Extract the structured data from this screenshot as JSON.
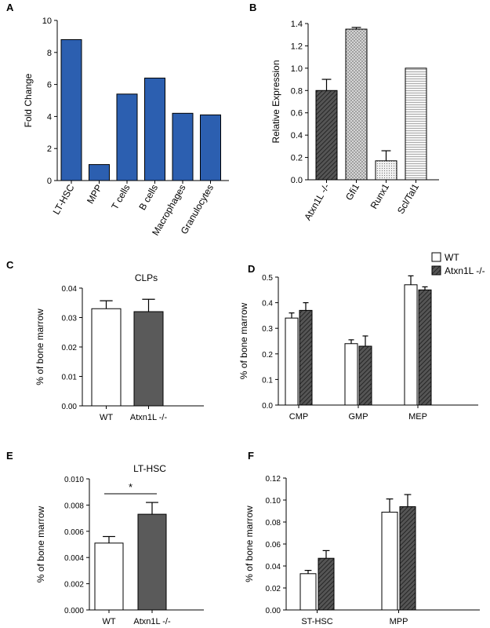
{
  "figure": {
    "legend": [
      {
        "label": "WT",
        "fill": "white"
      },
      {
        "label": "Atxn1L -/-",
        "fill": "dark-hatch"
      }
    ]
  },
  "chart_data": [
    {
      "panel": "A",
      "type": "bar",
      "ylabel": "Fold Change",
      "xlabel": "",
      "ylim": [
        0,
        10
      ],
      "yticks": [
        "0",
        "2",
        "4",
        "6",
        "8",
        "10"
      ],
      "categories": [
        "LT-HSC",
        "MPP",
        "T cells",
        "B cells",
        "Macrophages",
        "Granulocytes"
      ],
      "values": [
        8.8,
        1.0,
        5.4,
        6.4,
        4.2,
        4.1
      ],
      "bar_color": "#2c5fb0",
      "rotated_labels": true
    },
    {
      "panel": "B",
      "type": "bar",
      "ylabel": "Relative Expression",
      "xlabel": "",
      "ylim": [
        0,
        1.4
      ],
      "yticks": [
        "0.0",
        "0.2",
        "0.4",
        "0.6",
        "0.8",
        "1.0",
        "1.2",
        "1.4"
      ],
      "categories": [
        "Atxn1L -/-",
        "Gfi1",
        "Runx1",
        "Scl/Tal1"
      ],
      "values": [
        0.8,
        1.35,
        0.17,
        1.0
      ],
      "errors": [
        0.1,
        0.015,
        0.09,
        0
      ],
      "fills": [
        "dark-hatch",
        "light-cross",
        "dots",
        "hlines"
      ],
      "rotated_labels": true
    },
    {
      "panel": "C",
      "type": "bar",
      "title": "CLPs",
      "ylabel": "% of bone marrow",
      "xlabel": "",
      "ylim": [
        0,
        0.04
      ],
      "yticks": [
        "0.00",
        "0.01",
        "0.02",
        "0.03",
        "0.04"
      ],
      "categories": [
        "WT",
        "Atxn1L -/-"
      ],
      "values": [
        0.033,
        0.032
      ],
      "errors": [
        0.0027,
        0.0042
      ],
      "fills": [
        "white",
        "gray"
      ]
    },
    {
      "panel": "D",
      "type": "bar",
      "ylabel": "% of bone marrow",
      "xlabel": "",
      "ylim": [
        0,
        0.5
      ],
      "yticks": [
        "0.0",
        "0.1",
        "0.2",
        "0.3",
        "0.4",
        "0.5"
      ],
      "categories": [
        "CMP",
        "GMP",
        "MEP"
      ],
      "series": [
        {
          "name": "WT",
          "values": [
            0.34,
            0.24,
            0.47
          ],
          "errors": [
            0.02,
            0.015,
            0.035
          ],
          "fill": "white"
        },
        {
          "name": "Atxn1L -/-",
          "values": [
            0.37,
            0.23,
            0.45
          ],
          "errors": [
            0.03,
            0.04,
            0.012
          ],
          "fill": "dark-hatch"
        }
      ]
    },
    {
      "panel": "E",
      "type": "bar",
      "title": "LT-HSC",
      "ylabel": "% of bone marrow",
      "xlabel": "",
      "ylim": [
        0,
        0.01
      ],
      "yticks": [
        "0.000",
        "0.002",
        "0.004",
        "0.006",
        "0.008",
        "0.010"
      ],
      "categories": [
        "WT",
        "Atxn1L -/-"
      ],
      "values": [
        0.0051,
        0.0073
      ],
      "errors": [
        0.0005,
        0.0009
      ],
      "fills": [
        "white",
        "gray"
      ],
      "significance": "*"
    },
    {
      "panel": "F",
      "type": "bar",
      "ylabel": "% of bone marrow",
      "xlabel": "",
      "ylim": [
        0,
        0.12
      ],
      "yticks": [
        "0.00",
        "0.02",
        "0.04",
        "0.06",
        "0.08",
        "0.10",
        "0.12"
      ],
      "categories": [
        "ST-HSC",
        "MPP"
      ],
      "series": [
        {
          "name": "WT",
          "values": [
            0.033,
            0.089
          ],
          "errors": [
            0.003,
            0.012
          ],
          "fill": "white"
        },
        {
          "name": "Atxn1L -/-",
          "values": [
            0.047,
            0.094
          ],
          "errors": [
            0.007,
            0.011
          ],
          "fill": "dark-hatch"
        }
      ]
    }
  ]
}
